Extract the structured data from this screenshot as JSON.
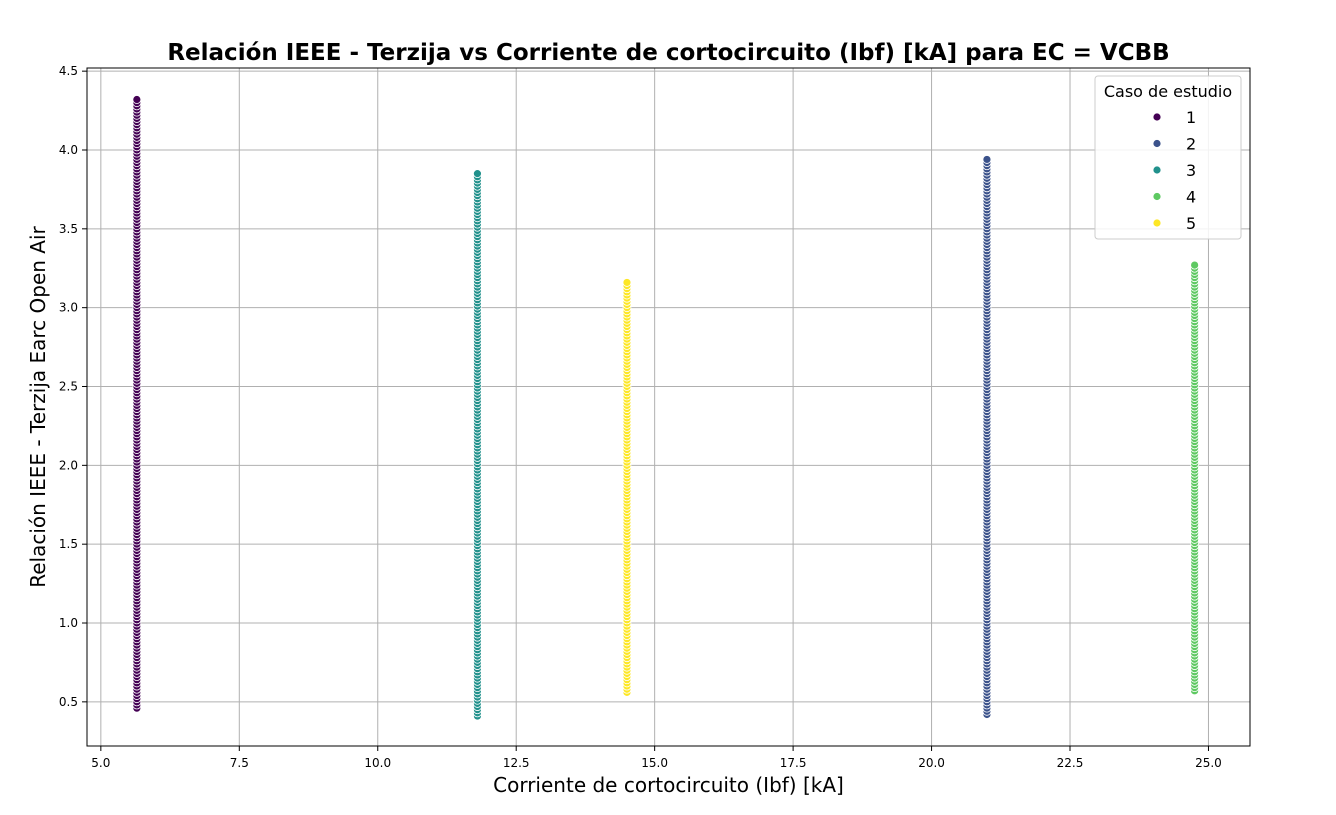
{
  "chart_data": {
    "type": "scatter",
    "title": "Relación IEEE - Terzija vs Corriente de cortocircuito (Ibf) [kA] para EC = VCBB",
    "xlabel": "Corriente de cortocircuito (Ibf) [kA]",
    "ylabel": "Relación IEEE - Terzija Earc Open Air",
    "xlim": [
      4.75,
      25.75
    ],
    "ylim": [
      0.22,
      4.52
    ],
    "xticks": [
      5.0,
      7.5,
      10.0,
      12.5,
      15.0,
      17.5,
      20.0,
      22.5,
      25.0
    ],
    "xtick_labels": [
      "5.0",
      "7.5",
      "10.0",
      "12.5",
      "15.0",
      "17.5",
      "20.0",
      "22.5",
      "25.0"
    ],
    "yticks": [
      0.5,
      1.0,
      1.5,
      2.0,
      2.5,
      3.0,
      3.5,
      4.0,
      4.5
    ],
    "ytick_labels": [
      "0.5",
      "1.0",
      "1.5",
      "2.0",
      "2.5",
      "3.0",
      "3.5",
      "4.0",
      "4.5"
    ],
    "grid": true,
    "legend": {
      "title": "Caso de estudio",
      "placement": "top-right",
      "entries": [
        "1",
        "2",
        "3",
        "4",
        "5"
      ]
    },
    "series": [
      {
        "name": "1",
        "x": 5.65,
        "y_min": 0.46,
        "y_max": 4.33,
        "color": "#440154"
      },
      {
        "name": "2",
        "x": 21.0,
        "y_min": 0.42,
        "y_max": 3.95,
        "color": "#3b528b"
      },
      {
        "name": "3",
        "x": 11.8,
        "y_min": 0.41,
        "y_max": 3.86,
        "color": "#21918c"
      },
      {
        "name": "4",
        "x": 24.75,
        "y_min": 0.57,
        "y_max": 3.27,
        "color": "#5ec962"
      },
      {
        "name": "5",
        "x": 14.5,
        "y_min": 0.56,
        "y_max": 3.16,
        "color": "#fde725"
      }
    ]
  }
}
